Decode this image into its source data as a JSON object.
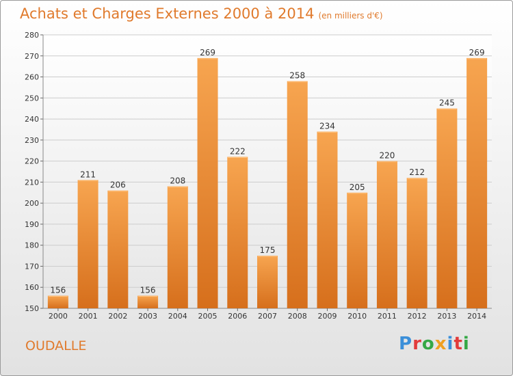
{
  "header": {
    "title": "Achats et Charges Externes 2000 à 2014",
    "subtitle": "(en milliers d'€)"
  },
  "footer": {
    "city": "OUDALLE",
    "logo_text": "Proxiti"
  },
  "colors": {
    "accent": "#e07a2c",
    "bar_light": "#f7a550",
    "bar_dark": "#d9731f",
    "grid": "#cccccc"
  },
  "chart_data": {
    "type": "bar",
    "title": "Achats et Charges Externes 2000 à 2014",
    "subtitle": "(en milliers d'€)",
    "categories": [
      "2000",
      "2001",
      "2002",
      "2003",
      "2004",
      "2005",
      "2006",
      "2007",
      "2008",
      "2009",
      "2010",
      "2011",
      "2012",
      "2013",
      "2014"
    ],
    "values": [
      156,
      211,
      206,
      156,
      208,
      269,
      222,
      175,
      258,
      234,
      205,
      220,
      212,
      245,
      269
    ],
    "ylim": [
      150,
      280
    ],
    "yticks": [
      150,
      160,
      170,
      180,
      190,
      200,
      210,
      220,
      230,
      240,
      250,
      260,
      270,
      280
    ],
    "grid": true,
    "legend": "none"
  }
}
